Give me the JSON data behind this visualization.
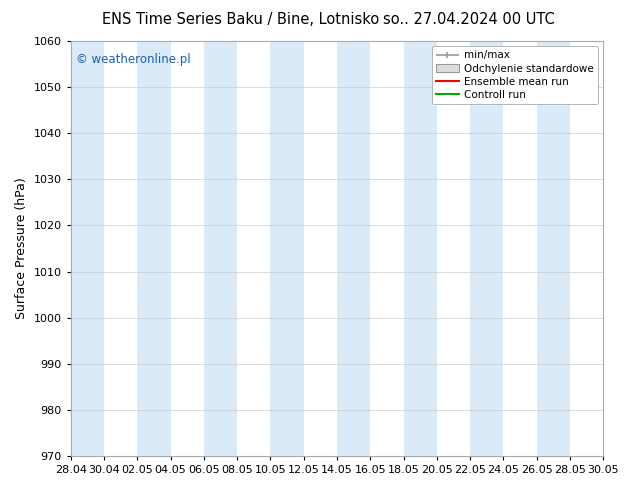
{
  "title_left": "ENS Time Series Baku / Bine, Lotnisko",
  "title_right": "so.. 27.04.2024 00 UTC",
  "ylabel": "Surface Pressure (hPa)",
  "ylim": [
    970,
    1060
  ],
  "yticks": [
    970,
    980,
    990,
    1000,
    1010,
    1020,
    1030,
    1040,
    1050,
    1060
  ],
  "x_tick_labels": [
    "28.04",
    "30.04",
    "02.05",
    "04.05",
    "06.05",
    "08.05",
    "10.05",
    "12.05",
    "14.05",
    "16.05",
    "18.05",
    "20.05",
    "22.05",
    "24.05",
    "26.05",
    "28.05",
    "30.05"
  ],
  "watermark": "© weatheronline.pl",
  "legend_entries": [
    "min/max",
    "Odchylenie standardowe",
    "Ensemble mean run",
    "Controll run"
  ],
  "band_color": "#daeaf7",
  "background_color": "#ffffff",
  "title_fontsize": 10.5,
  "ylabel_fontsize": 9,
  "tick_fontsize": 8,
  "watermark_color": "#1a5eb8",
  "legend_line_color": "#999999",
  "legend_fill_color": "#dddddd",
  "ens_color": "#ff0000",
  "ctrl_color": "#00aa00"
}
